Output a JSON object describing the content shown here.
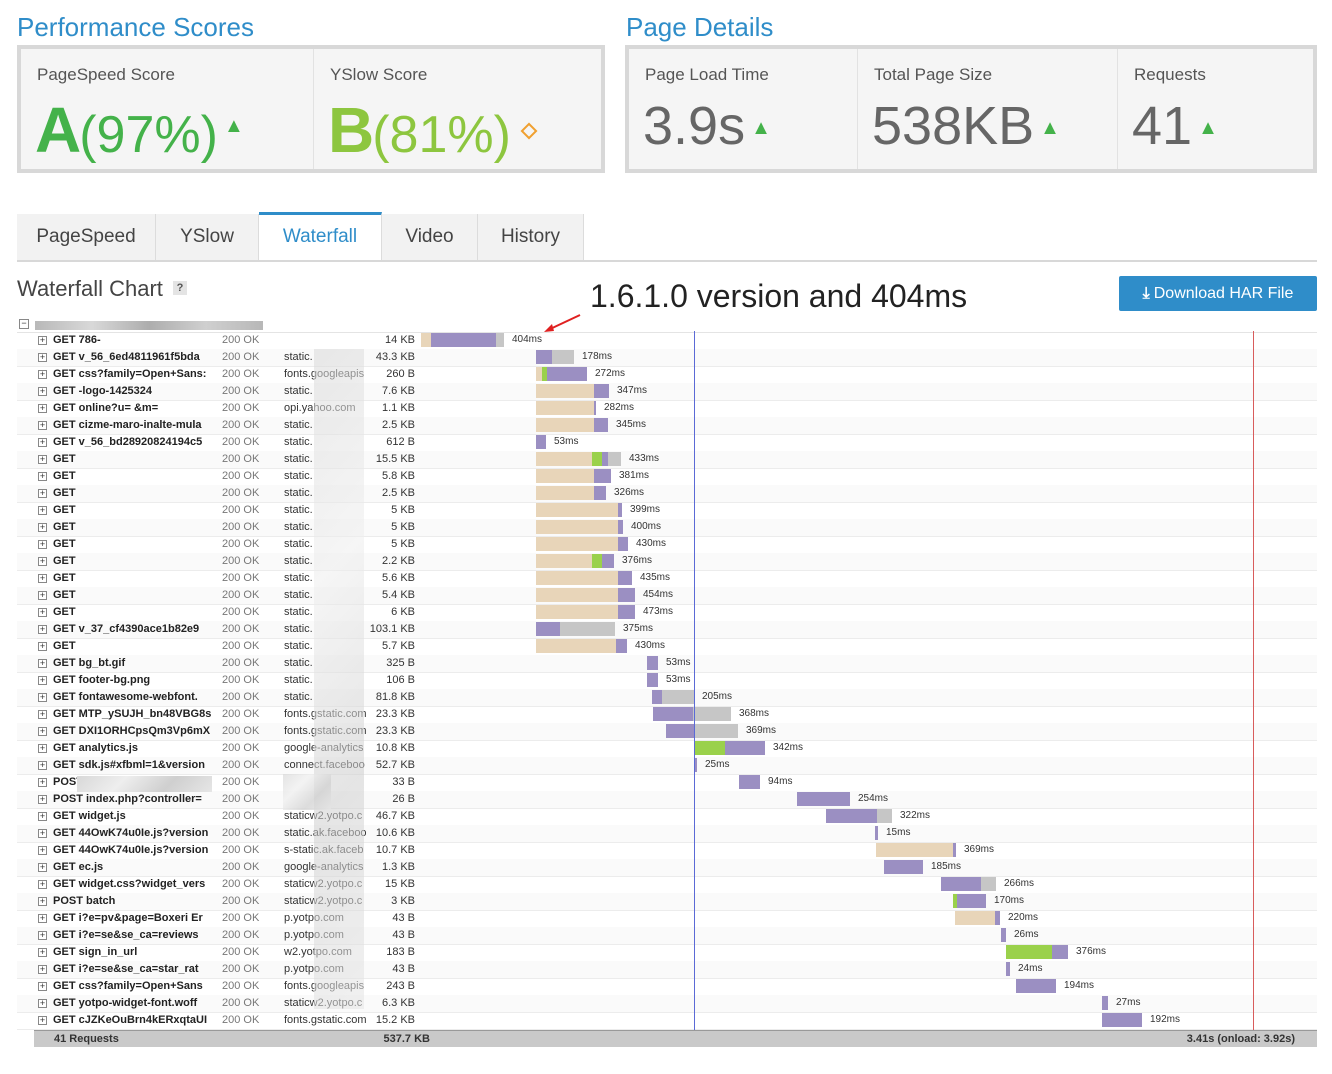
{
  "performance": {
    "title": "Performance Scores",
    "pagespeed": {
      "label": "PageSpeed Score",
      "grade": "A",
      "percent": "(97%)",
      "grade_color": "#44b24a"
    },
    "yslow": {
      "label": "YSlow Score",
      "grade": "B",
      "percent": "(81%)",
      "grade_color": "#8dc63f"
    }
  },
  "details": {
    "title": "Page Details",
    "load_time": {
      "label": "Page Load Time",
      "value": "3.9s"
    },
    "page_size": {
      "label": "Total Page Size",
      "value": "538KB"
    },
    "requests": {
      "label": "Requests",
      "value": "41"
    }
  },
  "tabs": [
    "PageSpeed",
    "YSlow",
    "Waterfall",
    "Video",
    "History"
  ],
  "active_tab": "Waterfall",
  "waterfall": {
    "title": "Waterfall Chart",
    "help": "?",
    "annotation": "1.6.1.0 version and 404ms",
    "download_label": "Download HAR File",
    "footer": {
      "requests": "41 Requests",
      "total_size": "537.7 KB",
      "timing": "3.41s (onload: 3.92s)"
    },
    "rows": [
      {
        "url": "GET 786-",
        "status": "200 OK",
        "host": "",
        "size": "14 KB",
        "time": "404ms"
      },
      {
        "url": "GET v_56_6ed4811961f5bda",
        "status": "200 OK",
        "host": "static.",
        "size": "43.3 KB",
        "time": "178ms"
      },
      {
        "url": "GET css?family=Open+Sans:",
        "status": "200 OK",
        "host": "fonts.googleapis",
        "size": "260 B",
        "time": "272ms"
      },
      {
        "url": "GET -logo-1425324",
        "status": "200 OK",
        "host": "static.",
        "size": "7.6 KB",
        "time": "347ms"
      },
      {
        "url": "GET online?u= &m=",
        "status": "200 OK",
        "host": "opi.yahoo.com",
        "size": "1.1 KB",
        "time": "282ms"
      },
      {
        "url": "GET cizme-maro-inalte-mula",
        "status": "200 OK",
        "host": "static.",
        "size": "2.5 KB",
        "time": "345ms"
      },
      {
        "url": "GET v_56_bd28920824194c5",
        "status": "200 OK",
        "host": "static.",
        "size": "612 B",
        "time": "53ms"
      },
      {
        "url": "GET",
        "status": "200 OK",
        "host": "static.",
        "size": "15.5 KB",
        "time": "433ms"
      },
      {
        "url": "GET",
        "status": "200 OK",
        "host": "static.",
        "size": "5.8 KB",
        "time": "381ms"
      },
      {
        "url": "GET",
        "status": "200 OK",
        "host": "static.",
        "size": "2.5 KB",
        "time": "326ms"
      },
      {
        "url": "GET",
        "status": "200 OK",
        "host": "static.",
        "size": "5 KB",
        "time": "399ms"
      },
      {
        "url": "GET",
        "status": "200 OK",
        "host": "static.",
        "size": "5 KB",
        "time": "400ms"
      },
      {
        "url": "GET",
        "status": "200 OK",
        "host": "static.",
        "size": "5 KB",
        "time": "430ms"
      },
      {
        "url": "GET",
        "status": "200 OK",
        "host": "static.",
        "size": "2.2 KB",
        "time": "376ms"
      },
      {
        "url": "GET",
        "status": "200 OK",
        "host": "static.",
        "size": "5.6 KB",
        "time": "435ms"
      },
      {
        "url": "GET",
        "status": "200 OK",
        "host": "static.",
        "size": "5.4 KB",
        "time": "454ms"
      },
      {
        "url": "GET",
        "status": "200 OK",
        "host": "static.",
        "size": "6 KB",
        "time": "473ms"
      },
      {
        "url": "GET v_37_cf4390ace1b82e9",
        "status": "200 OK",
        "host": "static.",
        "size": "103.1 KB",
        "time": "375ms"
      },
      {
        "url": "GET",
        "status": "200 OK",
        "host": "static.",
        "size": "5.7 KB",
        "time": "430ms"
      },
      {
        "url": "GET bg_bt.gif",
        "status": "200 OK",
        "host": "static.",
        "size": "325 B",
        "time": "53ms"
      },
      {
        "url": "GET footer-bg.png",
        "status": "200 OK",
        "host": "static.",
        "size": "106 B",
        "time": "53ms"
      },
      {
        "url": "GET fontawesome-webfont.",
        "status": "200 OK",
        "host": "static.",
        "size": "81.8 KB",
        "time": "205ms"
      },
      {
        "url": "GET MTP_ySUJH_bn48VBG8s",
        "status": "200 OK",
        "host": "fonts.gstatic.com",
        "size": "23.3 KB",
        "time": "368ms"
      },
      {
        "url": "GET DXI1ORHCpsQm3Vp6mX",
        "status": "200 OK",
        "host": "fonts.gstatic.com",
        "size": "23.3 KB",
        "time": "369ms"
      },
      {
        "url": "GET analytics.js",
        "status": "200 OK",
        "host": "google-analytics",
        "size": "10.8 KB",
        "time": "342ms"
      },
      {
        "url": "GET sdk.js#xfbml=1&version",
        "status": "200 OK",
        "host": "connect.faceboo",
        "size": "52.7 KB",
        "time": "25ms"
      },
      {
        "url": "POST actions?process=check",
        "status": "200 OK",
        "host": "",
        "size": "33 B",
        "time": "94ms"
      },
      {
        "url": "POST index.php?controller=",
        "status": "200 OK",
        "host": "",
        "size": "26 B",
        "time": "254ms"
      },
      {
        "url": "GET widget.js",
        "status": "200 OK",
        "host": "staticw2.yotpo.c",
        "size": "46.7 KB",
        "time": "322ms"
      },
      {
        "url": "GET 44OwK74u0Ie.js?version",
        "status": "200 OK",
        "host": "static.ak.faceboo",
        "size": "10.6 KB",
        "time": "15ms"
      },
      {
        "url": "GET 44OwK74u0Ie.js?version",
        "status": "200 OK",
        "host": "s-static.ak.faceb",
        "size": "10.7 KB",
        "time": "369ms"
      },
      {
        "url": "GET ec.js",
        "status": "200 OK",
        "host": "google-analytics",
        "size": "1.3 KB",
        "time": "185ms"
      },
      {
        "url": "GET widget.css?widget_vers",
        "status": "200 OK",
        "host": "staticw2.yotpo.c",
        "size": "15 KB",
        "time": "266ms"
      },
      {
        "url": "POST batch",
        "status": "200 OK",
        "host": "staticw2.yotpo.c",
        "size": "3 KB",
        "time": "170ms"
      },
      {
        "url": "GET i?e=pv&page=Boxeri Er",
        "status": "200 OK",
        "host": "p.yotpo.com",
        "size": "43 B",
        "time": "220ms"
      },
      {
        "url": "GET i?e=se&se_ca=reviews",
        "status": "200 OK",
        "host": "p.yotpo.com",
        "size": "43 B",
        "time": "26ms"
      },
      {
        "url": "GET sign_in_url",
        "status": "200 OK",
        "host": "w2.yotpo.com",
        "size": "183 B",
        "time": "376ms"
      },
      {
        "url": "GET i?e=se&se_ca=star_rat",
        "status": "200 OK",
        "host": "p.yotpo.com",
        "size": "43 B",
        "time": "24ms"
      },
      {
        "url": "GET css?family=Open+Sans",
        "status": "200 OK",
        "host": "fonts.googleapis",
        "size": "243 B",
        "time": "194ms"
      },
      {
        "url": "GET yotpo-widget-font.woff",
        "status": "200 OK",
        "host": "staticw2.yotpo.c",
        "size": "6.3 KB",
        "time": "27ms"
      },
      {
        "url": "GET cJZKeOuBrn4kERxqtaUI",
        "status": "200 OK",
        "host": "fonts.gstatic.com",
        "size": "15.2 KB",
        "time": "192ms"
      }
    ]
  },
  "colors": {
    "dns": "#e8d5b9",
    "connect": "#9ad14b",
    "wait": "#9b8fc2",
    "receive": "#c6c6c6",
    "domloaded": "#5b6ad6",
    "onload": "#d85c5c"
  }
}
